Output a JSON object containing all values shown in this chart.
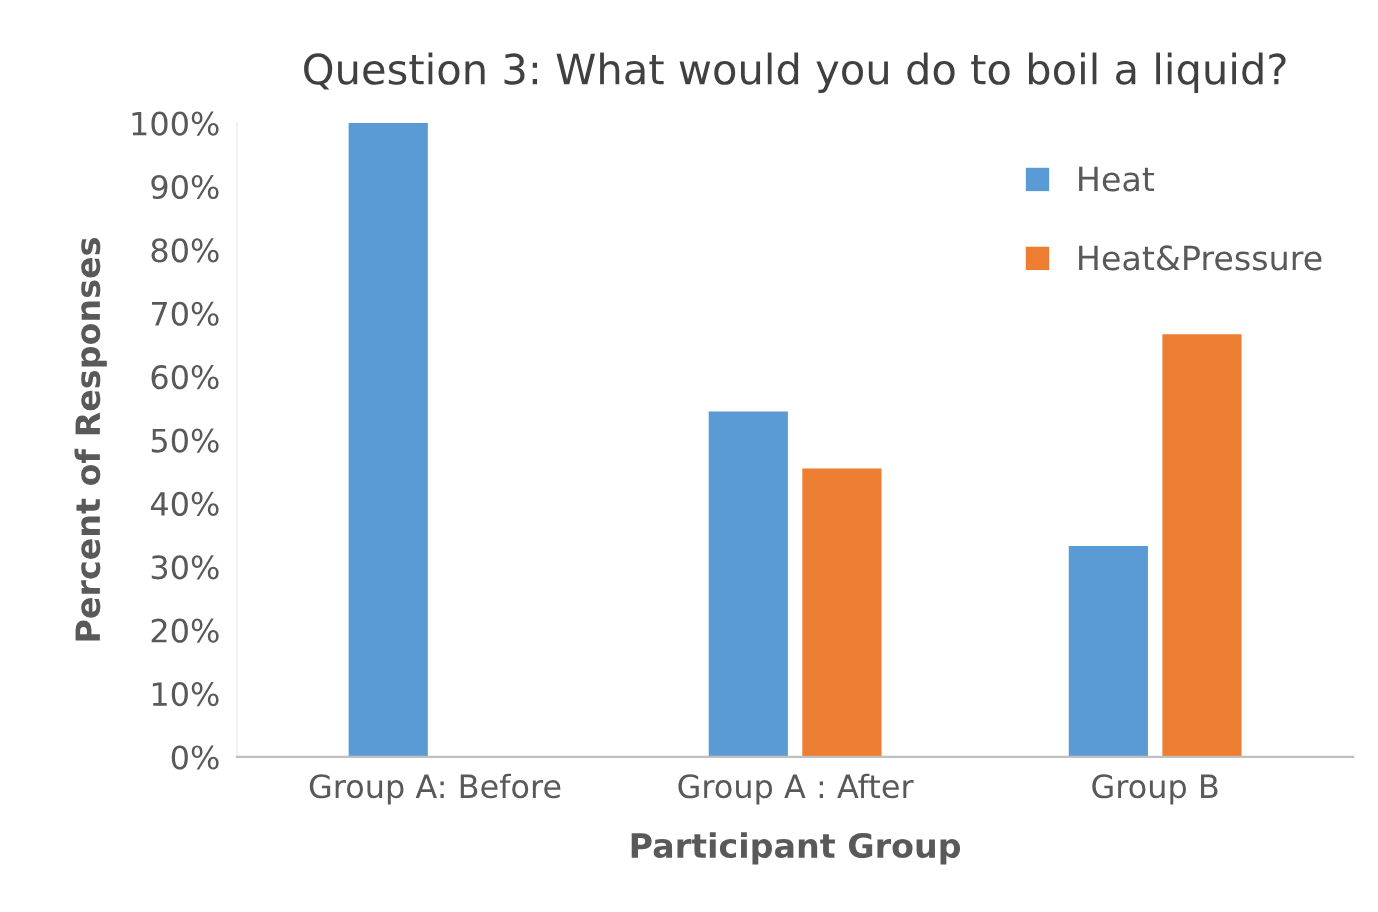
{
  "chart_data": {
    "type": "bar",
    "title": "Question 3: What would you do to boil a liquid?",
    "xlabel": "Participant Group",
    "ylabel": "Percent of Responses",
    "categories": [
      "Group A: Before",
      "Group A : After",
      "Group B"
    ],
    "series": [
      {
        "name": "Heat",
        "color": "#5b9bd5",
        "values": [
          100,
          54.5,
          33.3
        ]
      },
      {
        "name": "Heat&Pressure",
        "color": "#ed7d31",
        "values": [
          0,
          45.5,
          66.7
        ]
      }
    ],
    "ylim": [
      0,
      100
    ],
    "yticks": [
      {
        "value": 0,
        "label": "0%"
      },
      {
        "value": 10,
        "label": "10%"
      },
      {
        "value": 20,
        "label": "20%"
      },
      {
        "value": 30,
        "label": "30%"
      },
      {
        "value": 40,
        "label": "40%"
      },
      {
        "value": 50,
        "label": "50%"
      },
      {
        "value": 60,
        "label": "60%"
      },
      {
        "value": 70,
        "label": "70%"
      },
      {
        "value": 80,
        "label": "80%"
      },
      {
        "value": 90,
        "label": "90%"
      },
      {
        "value": 100,
        "label": "100%"
      }
    ],
    "grid": false,
    "legend": "top right"
  }
}
